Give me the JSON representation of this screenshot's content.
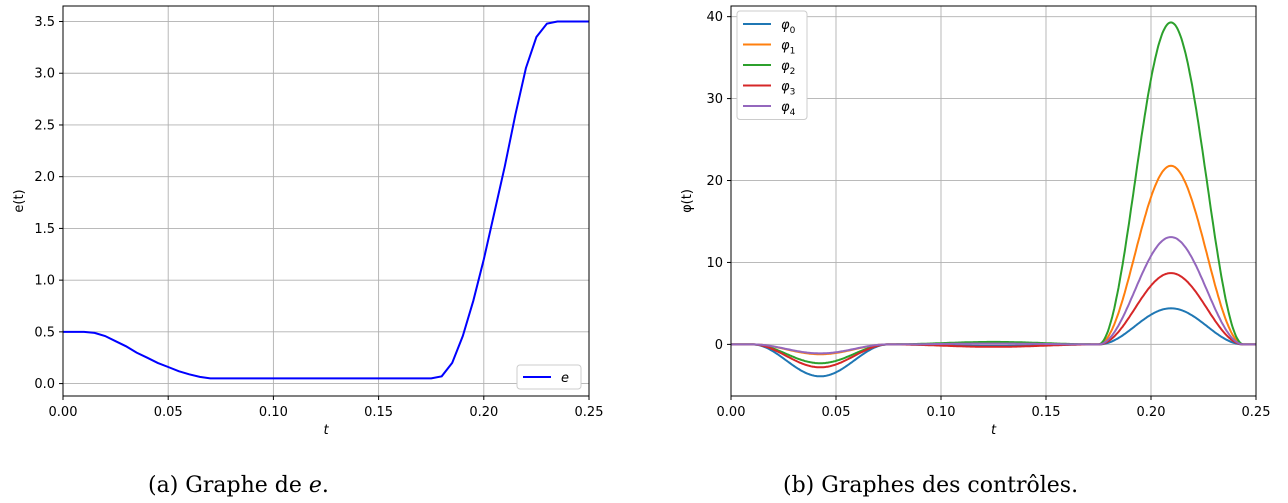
{
  "chart_data": [
    {
      "type": "line",
      "caption_prefix": "(a) Graphe de ",
      "caption_var": "e",
      "caption_suffix": ".",
      "xlabel": "t",
      "ylabel": "e(t)",
      "xlim": [
        0,
        0.25
      ],
      "ylim": [
        -0.12,
        3.65
      ],
      "xticks": [
        0.0,
        0.05,
        0.1,
        0.15,
        0.2,
        0.25
      ],
      "xtick_labels": [
        "0.00",
        "0.05",
        "0.10",
        "0.15",
        "0.20",
        "0.25"
      ],
      "yticks": [
        0.0,
        0.5,
        1.0,
        1.5,
        2.0,
        2.5,
        3.0,
        3.5
      ],
      "ytick_labels": [
        "0.0",
        "0.5",
        "1.0",
        "1.5",
        "2.0",
        "2.5",
        "3.0",
        "3.5"
      ],
      "grid": true,
      "legend_position": "lower-right",
      "series": [
        {
          "name": "e",
          "color": "#0000ff",
          "x": [
            0.0,
            0.01,
            0.015,
            0.02,
            0.025,
            0.03,
            0.035,
            0.04,
            0.045,
            0.05,
            0.055,
            0.06,
            0.065,
            0.07,
            0.075,
            0.1,
            0.15,
            0.175,
            0.18,
            0.185,
            0.19,
            0.195,
            0.2,
            0.205,
            0.21,
            0.215,
            0.22,
            0.225,
            0.23,
            0.235,
            0.24,
            0.25
          ],
          "y": [
            0.5,
            0.5,
            0.49,
            0.46,
            0.41,
            0.36,
            0.3,
            0.25,
            0.2,
            0.16,
            0.12,
            0.09,
            0.065,
            0.05,
            0.05,
            0.05,
            0.05,
            0.05,
            0.07,
            0.2,
            0.46,
            0.8,
            1.2,
            1.65,
            2.1,
            2.6,
            3.05,
            3.35,
            3.48,
            3.5,
            3.5,
            3.5
          ]
        }
      ]
    },
    {
      "type": "line",
      "caption_prefix": "(b) Graphes des contrôles.",
      "caption_var": "",
      "caption_suffix": "",
      "xlabel": "t",
      "ylabel": "φ(t)",
      "xlim": [
        0,
        0.25
      ],
      "ylim": [
        -6.3,
        41.3
      ],
      "xticks": [
        0.0,
        0.05,
        0.1,
        0.15,
        0.2,
        0.25
      ],
      "xtick_labels": [
        "0.00",
        "0.05",
        "0.10",
        "0.15",
        "0.20",
        "0.25"
      ],
      "yticks": [
        0,
        10,
        20,
        30,
        40
      ],
      "ytick_labels": [
        "0",
        "10",
        "20",
        "30",
        "40"
      ],
      "grid": true,
      "legend_position": "top-left",
      "series": [
        {
          "name": "φ",
          "sub": "0",
          "color": "#1f77b4",
          "trough": -3.9,
          "bump": -0.2,
          "peak": 4.4
        },
        {
          "name": "φ",
          "sub": "1",
          "color": "#ff7f0e",
          "trough": -1.2,
          "bump": 0.15,
          "peak": 21.8
        },
        {
          "name": "φ",
          "sub": "2",
          "color": "#2ca02c",
          "trough": -2.3,
          "bump": 0.3,
          "peak": 39.3
        },
        {
          "name": "φ",
          "sub": "3",
          "color": "#d62728",
          "trough": -2.8,
          "bump": -0.3,
          "peak": 8.7
        },
        {
          "name": "φ",
          "sub": "4",
          "color": "#9467bd",
          "trough": -1.1,
          "bump": 0.1,
          "peak": 13.1
        }
      ]
    }
  ]
}
